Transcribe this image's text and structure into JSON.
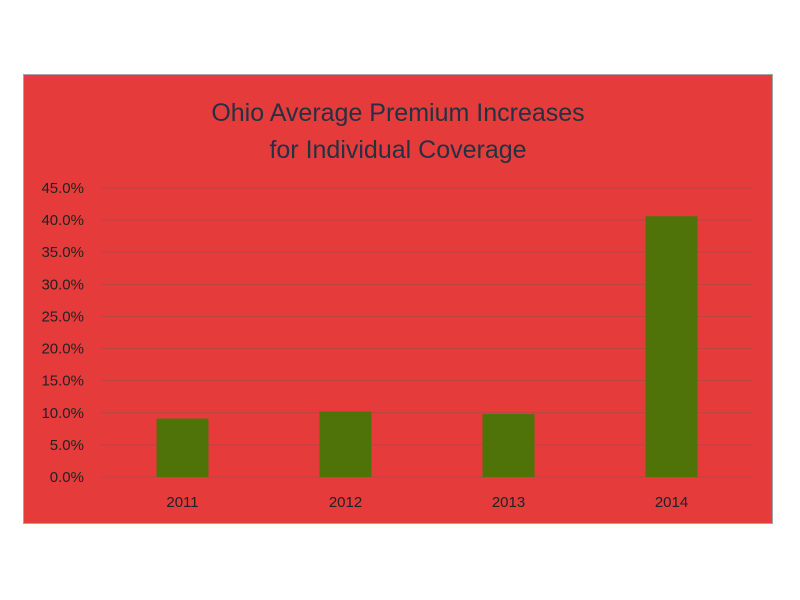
{
  "chart_data": {
    "type": "bar",
    "title_lines": [
      "Ohio Average Premium Increases",
      "for Individual Coverage"
    ],
    "categories": [
      "2011",
      "2012",
      "2013",
      "2014"
    ],
    "values": [
      9.1,
      10.2,
      9.8,
      40.6
    ],
    "ylim": [
      0,
      45
    ],
    "y_ticks": [
      0,
      5,
      10,
      15,
      20,
      25,
      30,
      35,
      40,
      45
    ],
    "y_tick_labels": [
      "0.0%",
      "5.0%",
      "10.0%",
      "15.0%",
      "20.0%",
      "25.0%",
      "30.0%",
      "35.0%",
      "40.0%",
      "45.0%"
    ],
    "grid": true,
    "legend": "none",
    "colors": {
      "background": "#e63b3b",
      "bar": "#4f7309",
      "gridline": "#b8454a",
      "title": "#243142",
      "tick_text": "#222222"
    }
  }
}
